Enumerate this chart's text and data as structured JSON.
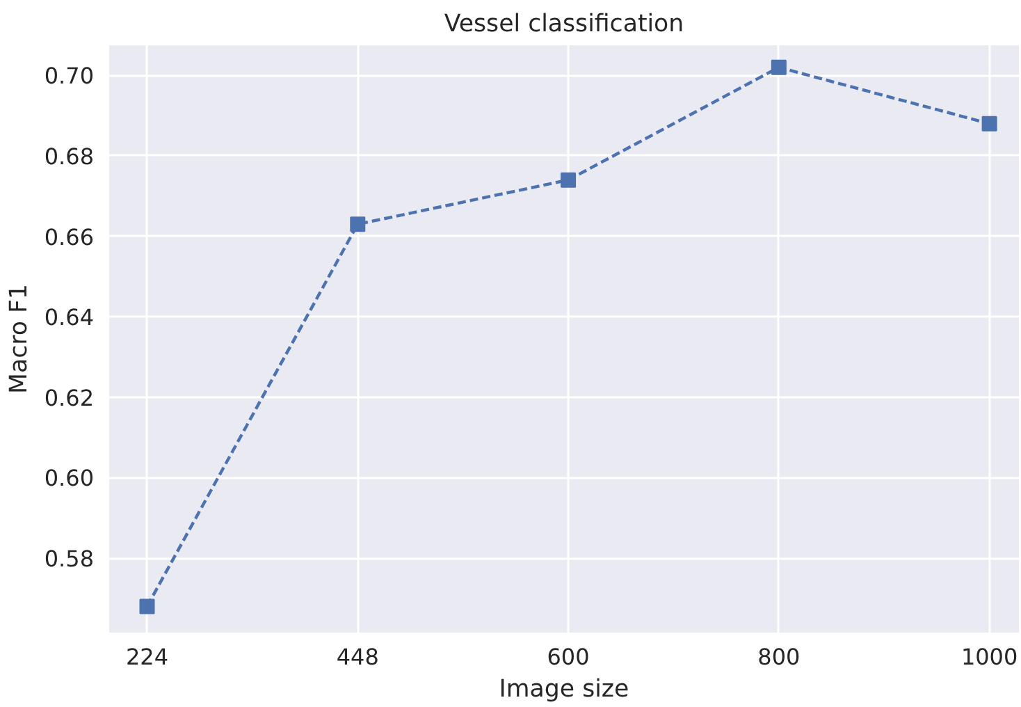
{
  "chart_data": {
    "type": "line",
    "title": "Vessel classification",
    "xlabel": "Image size",
    "ylabel": "Macro F1",
    "categories": [
      "224",
      "448",
      "600",
      "800",
      "1000"
    ],
    "series": [
      {
        "color": "#4c72b0",
        "values": [
          0.568,
          0.663,
          0.674,
          0.702,
          0.688
        ]
      }
    ],
    "ylim": [
      0.5615,
      0.7075
    ],
    "yticks": [
      0.58,
      {
        "value": 0.6,
        "label": "0.60"
      },
      0.62,
      0.64,
      0.66,
      0.68,
      {
        "value": 0.7,
        "label": "0.70"
      }
    ],
    "grid": true,
    "marker": "square",
    "line_style": "dashed"
  }
}
